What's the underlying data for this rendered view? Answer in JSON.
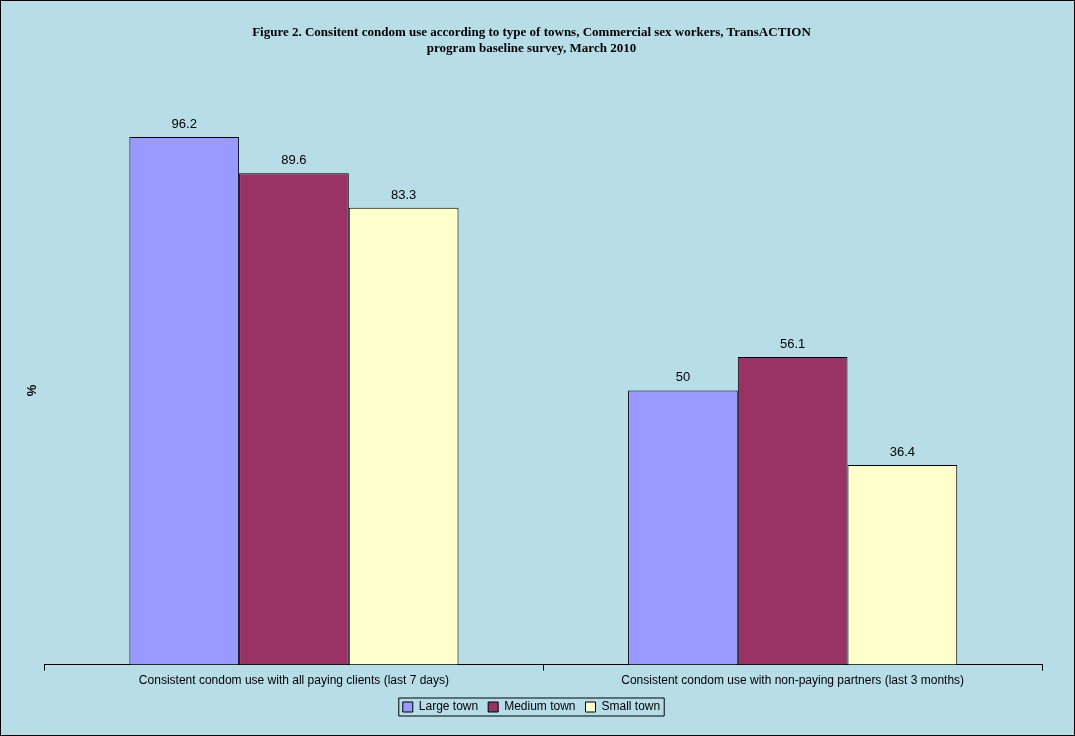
{
  "chart_data": {
    "type": "bar",
    "title": [
      "Figure 2. Consitent condom use according to type of towns, Commercial sex workers, TransACTION",
      "program baseline survey, March 2010"
    ],
    "ylabel": "%",
    "categories": [
      "Consistent condom use with all paying clients (last 7 days)",
      "Consistent condom use with non-paying partners (last 3 months)"
    ],
    "series": [
      {
        "name": "Large town",
        "color": "#9999ff",
        "values": [
          96.2,
          50
        ]
      },
      {
        "name": "Medium town",
        "color": "#993366",
        "values": [
          89.6,
          56.1
        ]
      },
      {
        "name": "Small town",
        "color": "#ffffcc",
        "values": [
          83.3,
          36.4
        ]
      }
    ],
    "data_labels": true,
    "grid": false,
    "legend": "bottom"
  }
}
